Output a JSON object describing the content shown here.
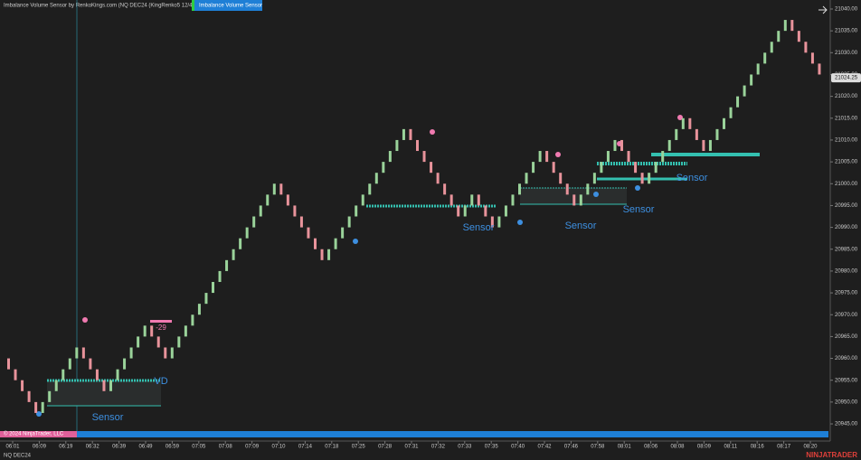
{
  "header": {
    "title": "Imbalance Volume Sensor by RenkoKings.com (NQ DEC24 (KingRenko5 12/4))",
    "tab": "Imbalance Volume Sensor"
  },
  "chart_data": {
    "type": "renko",
    "first_open": 20960,
    "closes": [
      20957.5,
      20955,
      20952.5,
      20950,
      20947.5,
      20950,
      20952.5,
      20955,
      20957.5,
      20960,
      20962.5,
      20960,
      20957.5,
      20955,
      20952.5,
      20955,
      20957.5,
      20960,
      20962.5,
      20965,
      20967.5,
      20965,
      20962.5,
      20960,
      20962.5,
      20965,
      20967.5,
      20970,
      20972.5,
      20975,
      20977.5,
      20980,
      20982.5,
      20985,
      20987.5,
      20990,
      20992.5,
      20995,
      20997.5,
      21000,
      20997.5,
      20995,
      20992.5,
      20990,
      20987.5,
      20985,
      20982.5,
      20985,
      20987.5,
      20990,
      20992.5,
      20995,
      20997.5,
      21000,
      21002.5,
      21005,
      21007.5,
      21010,
      21012.5,
      21010,
      21007.5,
      21005,
      21002.5,
      21000,
      20997.5,
      20995,
      20992.5,
      20995,
      20997.5,
      20995,
      20992.5,
      20990,
      20992.5,
      20995,
      20997.5,
      21000,
      21002.5,
      21005,
      21007.5,
      21005,
      21002.5,
      21000,
      20997.5,
      20995,
      20997.5,
      21000,
      21002.5,
      21005,
      21007.5,
      21010,
      21007.5,
      21005,
      21002.5,
      21000,
      21002.5,
      21005,
      21007.5,
      21010,
      21012.5,
      21015,
      21012.5,
      21010,
      21007.5,
      21010,
      21012.5,
      21015,
      21017.5,
      21020,
      21022.5,
      21025,
      21027.5,
      21030,
      21032.5,
      21035,
      21037.5,
      21035,
      21032.5,
      21030,
      21027.5,
      21025
    ],
    "up_color": "#9ad39a",
    "down_color": "#e8939b",
    "ylim": [
      20940,
      21042.5
    ],
    "yticks": [
      {
        "value": 20945,
        "label": "20945.00"
      },
      {
        "value": 20950,
        "label": "20950.00"
      },
      {
        "value": 20955,
        "label": "20955.00"
      },
      {
        "value": 20960,
        "label": "20960.00"
      },
      {
        "value": 20965,
        "label": "20965.00"
      },
      {
        "value": 20970,
        "label": "20970.00"
      },
      {
        "value": 20975,
        "label": "20975.00"
      },
      {
        "value": 20980,
        "label": "20980.00"
      },
      {
        "value": 20985,
        "label": "20985.00"
      },
      {
        "value": 20990,
        "label": "20990.00"
      },
      {
        "value": 20995,
        "label": "20995.00"
      },
      {
        "value": 21000,
        "label": "21000.00"
      },
      {
        "value": 21005,
        "label": "21005.00"
      },
      {
        "value": 21010,
        "label": "21010.00"
      },
      {
        "value": 21015,
        "label": "21015.00"
      },
      {
        "value": 21020,
        "label": "21020.00"
      },
      {
        "value": 21025,
        "label": "21025.00"
      },
      {
        "value": 21030,
        "label": "21030.00"
      },
      {
        "value": 21035,
        "label": "21035.00"
      },
      {
        "value": 21040,
        "label": "21040.00"
      }
    ],
    "last_price": {
      "value": 21024.25,
      "label": "21024.25"
    },
    "x_labels": [
      "06:01",
      "06:09",
      "06:19",
      "06:32",
      "06:39",
      "06:49",
      "06:59",
      "07:05",
      "07:08",
      "07:09",
      "07:10",
      "07:14",
      "07:18",
      "07:25",
      "07:28",
      "07:31",
      "07:32",
      "07:33",
      "07:35",
      "07:40",
      "07:42",
      "07:46",
      "07:58",
      "08:01",
      "08:06",
      "08:08",
      "08:09",
      "08:11",
      "08:16",
      "08:17",
      "08:20"
    ],
    "annotations": [
      "Sensor",
      "VD",
      "-29",
      "Sensor",
      "Sensor",
      "Sensor",
      "Sensor"
    ]
  },
  "footer": {
    "instrument": "NQ DEC24",
    "copyright": "© 2024 NinjaTrader, LLC",
    "brand": "NINJATRADER"
  }
}
